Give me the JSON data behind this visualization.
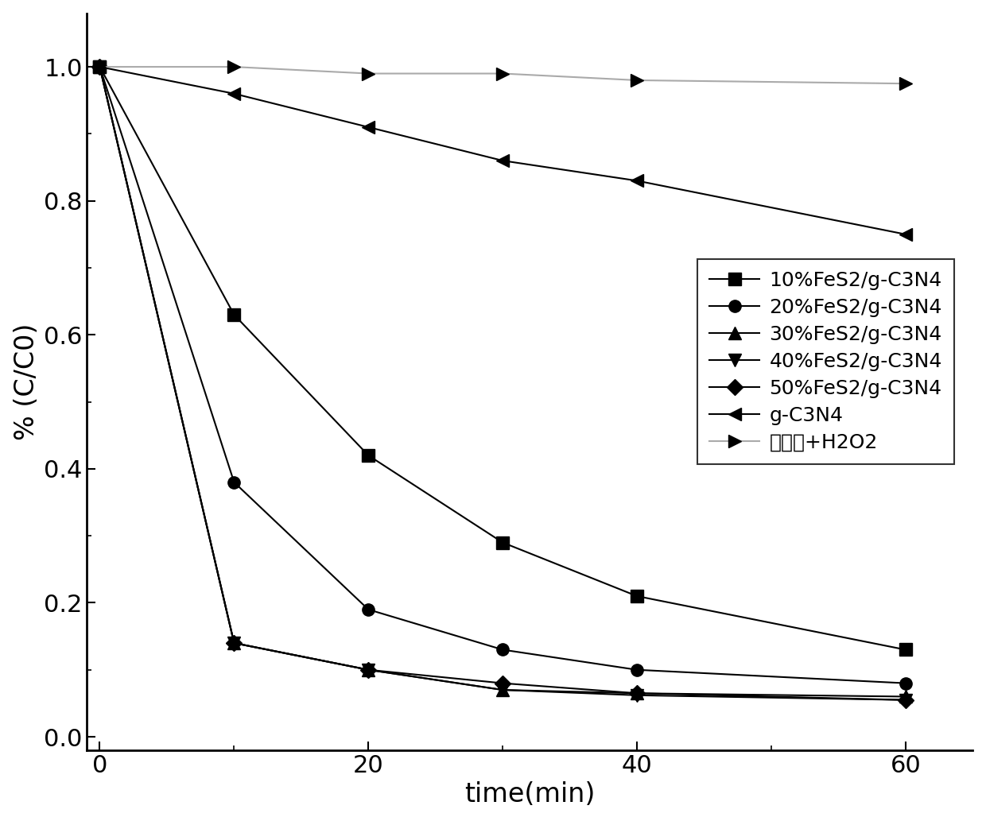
{
  "x": [
    0,
    10,
    20,
    30,
    40,
    60
  ],
  "series": [
    {
      "label": "10%FeS2/g-C3N4",
      "y": [
        1.0,
        0.63,
        0.42,
        0.29,
        0.21,
        0.13
      ],
      "marker": "s",
      "color": "#000000",
      "linecolor": "#000000",
      "markersize": 11,
      "linewidth": 1.5,
      "linestyle": "-"
    },
    {
      "label": "20%FeS2/g-C3N4",
      "y": [
        1.0,
        0.38,
        0.19,
        0.13,
        0.1,
        0.08
      ],
      "marker": "o",
      "color": "#000000",
      "linecolor": "#000000",
      "markersize": 11,
      "linewidth": 1.5,
      "linestyle": "-"
    },
    {
      "label": "30%FeS2/g-C3N4",
      "y": [
        1.0,
        0.14,
        0.1,
        0.07,
        0.065,
        0.06
      ],
      "marker": "^",
      "color": "#000000",
      "linecolor": "#000000",
      "markersize": 11,
      "linewidth": 1.5,
      "linestyle": "-"
    },
    {
      "label": "40%FeS2/g-C3N4",
      "y": [
        1.0,
        0.14,
        0.1,
        0.07,
        0.062,
        0.055
      ],
      "marker": "v",
      "color": "#000000",
      "linecolor": "#000000",
      "markersize": 11,
      "linewidth": 1.5,
      "linestyle": "-"
    },
    {
      "label": "50%FeS2/g-C3N4",
      "y": [
        1.0,
        0.14,
        0.1,
        0.08,
        0.065,
        0.055
      ],
      "marker": "D",
      "color": "#000000",
      "linecolor": "#000000",
      "markersize": 10,
      "linewidth": 1.5,
      "linestyle": "-"
    },
    {
      "label": "g-C3N4",
      "y": [
        1.0,
        0.96,
        0.91,
        0.86,
        0.83,
        0.75
      ],
      "marker": "<",
      "color": "#000000",
      "linecolor": "#000000",
      "markersize": 11,
      "linewidth": 1.5,
      "linestyle": "-"
    },
    {
      "label": "四环素+H2O2",
      "y": [
        1.0,
        1.0,
        0.99,
        0.99,
        0.98,
        0.975
      ],
      "marker": ">",
      "color": "#000000",
      "linecolor": "#aaaaaa",
      "markersize": 11,
      "linewidth": 1.5,
      "linestyle": "-"
    }
  ],
  "xlabel": "time(min)",
  "ylabel": "% (C/C0)",
  "xlim": [
    -1,
    65
  ],
  "ylim": [
    -0.02,
    1.08
  ],
  "xticks_major": [
    0,
    20,
    40,
    60
  ],
  "xticks_minor": [
    10,
    30,
    50
  ],
  "yticks_major": [
    0.0,
    0.2,
    0.4,
    0.6,
    0.8,
    1.0
  ],
  "yticks_minor": [
    0.1,
    0.3,
    0.5,
    0.7,
    0.9
  ],
  "fontsize_tick": 22,
  "fontsize_label": 24,
  "fontsize_legend": 18
}
